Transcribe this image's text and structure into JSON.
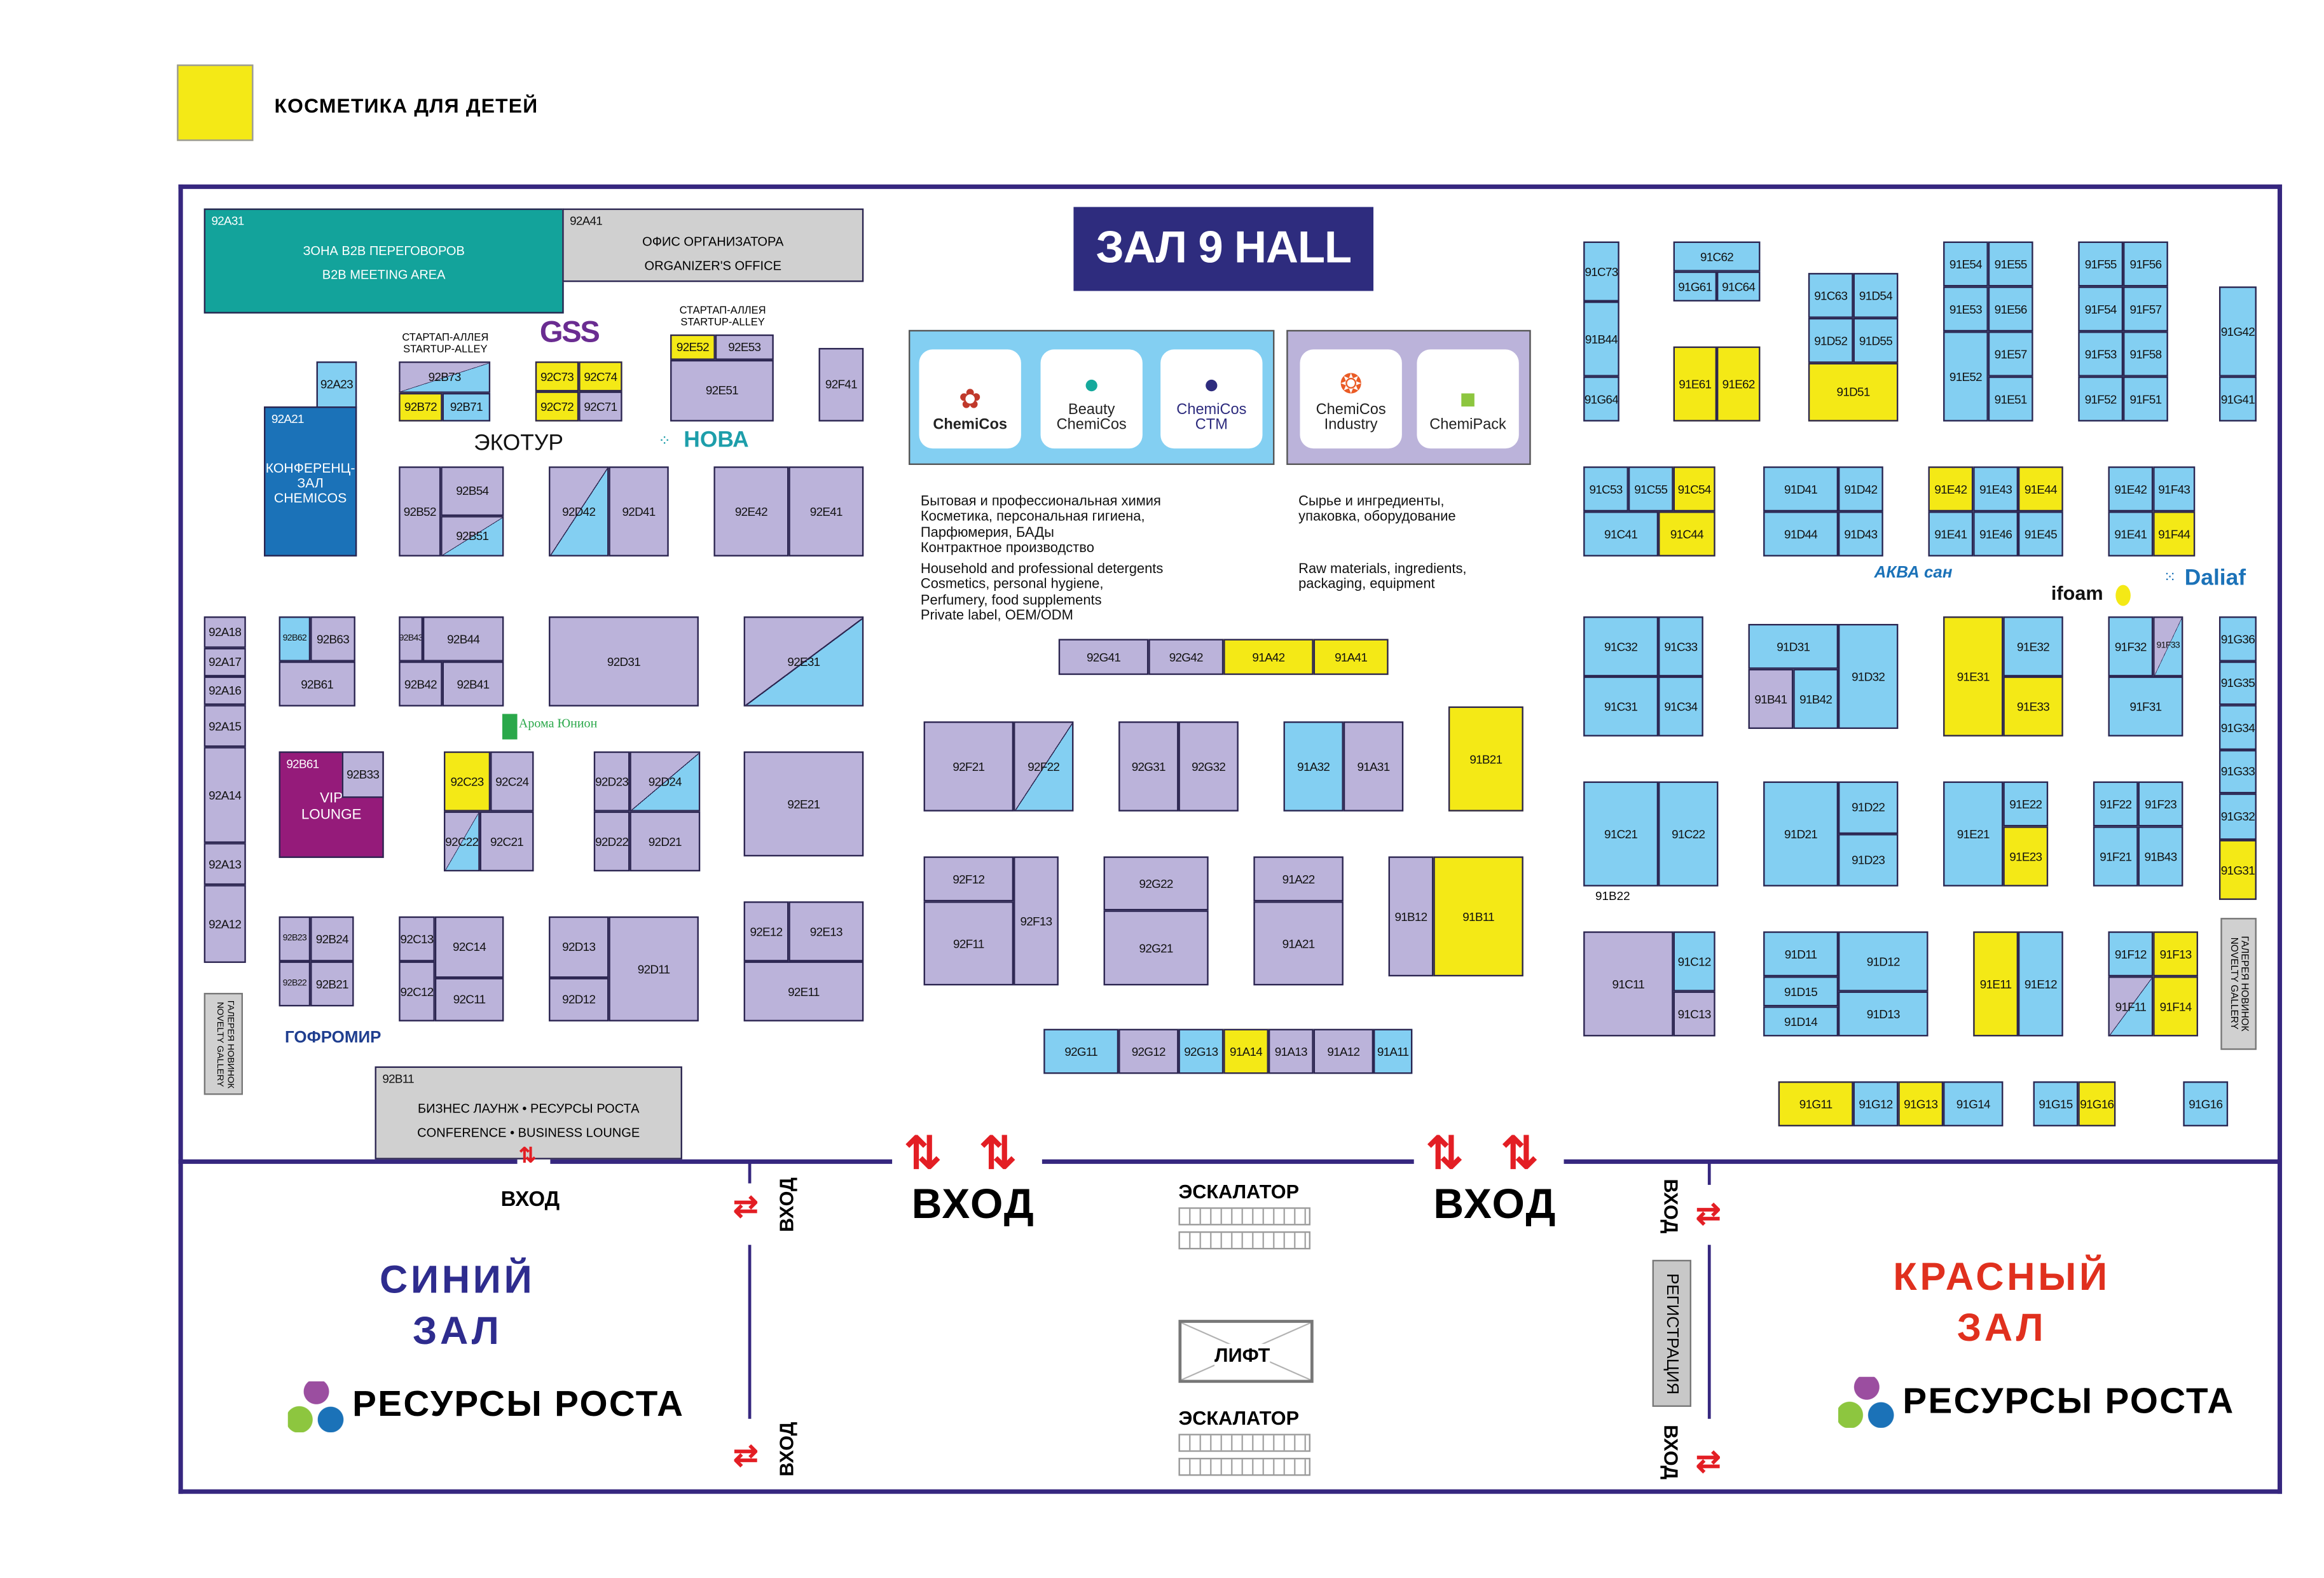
{
  "legend": {
    "label": "КОСМЕТИКА ДЛЯ ДЕТЕЙ",
    "color": "#f4e916"
  },
  "hall_title": "ЗАЛ 9 HALL",
  "colors": {
    "purple": "#bbb3da",
    "blue": "#83cff2",
    "yellow": "#f4e916",
    "teal": "#13a39b",
    "dark_blue": "#1b72b8",
    "magenta": "#951b7a",
    "gray": "#d0d0d0",
    "wall": "#36277f",
    "arrow": "#e31e24"
  },
  "brands_left": [
    {
      "name": "ChemiCos",
      "icon": "flower-icon"
    },
    {
      "name": "Beauty ChemiCos",
      "icon": "leaf-ball-icon"
    },
    {
      "name": "ChemiCos CTM",
      "icon": "pl-badge-icon"
    }
  ],
  "brands_right": [
    {
      "name": "ChemiCos Industry",
      "icon": "gear-ring-icon"
    },
    {
      "name": "ChemiPack",
      "icon": "cube-icon"
    }
  ],
  "desc_left_ru": "Бытовая и профессиональная химия\nКосметика, персональная гигиена,\nПарфюмерия, БАДы\nКонтрактное производство",
  "desc_left_en": "Household and professional detergents\nCosmetics, personal hygiene,\nPerfumery, food supplements\nPrivate label, OEM/ODM",
  "desc_right_ru": "Сырье и ингредиенты,\nупаковка, оборудование",
  "desc_right_en": "Raw materials, ingredients,\npackaging, equipment",
  "startup_alley": "СТАРТАП-АЛЛЕЯ\nSTARTUP-ALLEY",
  "novelty_gallery": "ГАЛЕРЕЯ НОВИНОК\nNOVELTY GALLERY",
  "exhibitor_logos": {
    "gss": "GSS",
    "ekotur": "ЭКОТУР",
    "nova": "НОВА",
    "aroma": "Арома Юнион",
    "gofromir": "ГОФРОМИР",
    "akvasan": "АКВА сан",
    "ifoam": "ifoam",
    "daliaf": "Daliaf"
  },
  "extra_label_91B22": "91B22",
  "bottom": {
    "entrance": "ВХОД",
    "escalator": "ЭСКАЛАТОР",
    "lift": "ЛИФТ",
    "registration": "РЕГИСТРАЦИЯ",
    "blue_hall_1": "СИНИЙ",
    "blue_hall_2": "ЗАЛ",
    "red_hall_1": "КРАСНЫЙ",
    "red_hall_2": "ЗАЛ",
    "resources": "РЕСУРСЫ РОСТА"
  },
  "booths": [
    {
      "id": "92A31",
      "c": "t",
      "note": [
        "ЗОНА B2B ПЕРЕГОВОРОВ",
        "B2B MEETING AREA"
      ]
    },
    {
      "id": "92A41",
      "c": "g",
      "note": [
        "ОФИС ОРГАНИЗАТОРА",
        "ORGANIZER'S OFFICE"
      ]
    },
    {
      "id": "92A23",
      "c": "b"
    },
    {
      "id": "92A21",
      "c": "d",
      "note": [
        "КОНФЕРЕНЦ-",
        "ЗАЛ",
        "CHEMICOS"
      ]
    },
    {
      "id": "92B73",
      "c": "pb"
    },
    {
      "id": "92B72",
      "c": "y"
    },
    {
      "id": "92B71",
      "c": "b"
    },
    {
      "id": "92C73",
      "c": "y"
    },
    {
      "id": "92C74",
      "c": "y"
    },
    {
      "id": "92C72",
      "c": "y"
    },
    {
      "id": "92C71",
      "c": "p"
    },
    {
      "id": "92E52",
      "c": "y"
    },
    {
      "id": "92E53",
      "c": "p"
    },
    {
      "id": "92E51",
      "c": "p"
    },
    {
      "id": "92F41",
      "c": "p"
    },
    {
      "id": "92B52",
      "c": "p"
    },
    {
      "id": "92B54",
      "c": "p"
    },
    {
      "id": "92B51",
      "c": "pb"
    },
    {
      "id": "92D42",
      "c": "pb"
    },
    {
      "id": "92D41",
      "c": "p"
    },
    {
      "id": "92E42",
      "c": "p"
    },
    {
      "id": "92E41",
      "c": "p"
    },
    {
      "id": "92A18",
      "c": "p"
    },
    {
      "id": "92A17",
      "c": "p"
    },
    {
      "id": "92A16",
      "c": "p"
    },
    {
      "id": "92A15",
      "c": "p"
    },
    {
      "id": "92A14",
      "c": "p"
    },
    {
      "id": "92A13",
      "c": "p"
    },
    {
      "id": "92A12",
      "c": "p"
    },
    {
      "id": "92B62",
      "c": "b"
    },
    {
      "id": "92B63",
      "c": "p"
    },
    {
      "id": "92B61",
      "c": "p"
    },
    {
      "id": "92B43",
      "c": "p"
    },
    {
      "id": "92B44",
      "c": "p"
    },
    {
      "id": "92B42",
      "c": "p"
    },
    {
      "id": "92B41",
      "c": "p"
    },
    {
      "id": "92D31",
      "c": "p"
    },
    {
      "id": "92E31",
      "c": "pb"
    },
    {
      "id": "92B61",
      "c": "m",
      "note": [
        "VIP",
        "LOUNGE"
      ]
    },
    {
      "id": "92B33",
      "c": "p"
    },
    {
      "id": "92C23",
      "c": "y"
    },
    {
      "id": "92C24",
      "c": "p"
    },
    {
      "id": "92C22",
      "c": "pb"
    },
    {
      "id": "92C21",
      "c": "p"
    },
    {
      "id": "92D23",
      "c": "p"
    },
    {
      "id": "92D24",
      "c": "pb"
    },
    {
      "id": "92D22",
      "c": "p"
    },
    {
      "id": "92D21",
      "c": "p"
    },
    {
      "id": "92E21",
      "c": "p"
    },
    {
      "id": "92B23",
      "c": "p"
    },
    {
      "id": "92B24",
      "c": "p"
    },
    {
      "id": "92B22",
      "c": "p"
    },
    {
      "id": "92B21",
      "c": "p"
    },
    {
      "id": "92C13",
      "c": "p"
    },
    {
      "id": "92C14",
      "c": "p"
    },
    {
      "id": "92C12",
      "c": "p"
    },
    {
      "id": "92C11",
      "c": "p"
    },
    {
      "id": "92D13",
      "c": "p"
    },
    {
      "id": "92D12",
      "c": "p"
    },
    {
      "id": "92D11",
      "c": "p"
    },
    {
      "id": "92E12",
      "c": "p"
    },
    {
      "id": "92E13",
      "c": "p"
    },
    {
      "id": "92E11",
      "c": "p"
    },
    {
      "id": "92B11",
      "c": "g",
      "note": [
        "БИЗНЕС ЛАУНЖ • РЕСУРСЫ РОСТА",
        "CONFERENCE • BUSINESS LOUNGE"
      ]
    },
    {
      "id": "92G41",
      "c": "p"
    },
    {
      "id": "92G42",
      "c": "p"
    },
    {
      "id": "91A42",
      "c": "y"
    },
    {
      "id": "91A41",
      "c": "y"
    },
    {
      "id": "92F21",
      "c": "p"
    },
    {
      "id": "92F22",
      "c": "pb"
    },
    {
      "id": "92G31",
      "c": "p"
    },
    {
      "id": "92G32",
      "c": "p"
    },
    {
      "id": "91A32",
      "c": "b"
    },
    {
      "id": "91A31",
      "c": "p"
    },
    {
      "id": "91B21",
      "c": "y"
    },
    {
      "id": "92F12",
      "c": "p"
    },
    {
      "id": "92F11",
      "c": "p"
    },
    {
      "id": "92F13",
      "c": "p"
    },
    {
      "id": "92G22",
      "c": "p"
    },
    {
      "id": "92G21",
      "c": "p"
    },
    {
      "id": "91A22",
      "c": "p"
    },
    {
      "id": "91A21",
      "c": "p"
    },
    {
      "id": "91B12",
      "c": "p"
    },
    {
      "id": "91B11",
      "c": "y"
    },
    {
      "id": "92G11",
      "c": "b"
    },
    {
      "id": "92G12",
      "c": "p"
    },
    {
      "id": "92G13",
      "c": "b"
    },
    {
      "id": "91A14",
      "c": "y"
    },
    {
      "id": "91A13",
      "c": "p"
    },
    {
      "id": "91A12",
      "c": "p"
    },
    {
      "id": "91A11",
      "c": "b"
    },
    {
      "id": "91C73",
      "c": "b"
    },
    {
      "id": "91B44",
      "c": "b"
    },
    {
      "id": "91G64",
      "c": "b"
    },
    {
      "id": "91C62",
      "c": "b"
    },
    {
      "id": "91G61",
      "c": "b"
    },
    {
      "id": "91C64",
      "c": "b"
    },
    {
      "id": "91E61",
      "c": "y"
    },
    {
      "id": "91E62",
      "c": "y"
    },
    {
      "id": "91C63",
      "c": "b"
    },
    {
      "id": "91D54",
      "c": "b"
    },
    {
      "id": "91D52",
      "c": "b"
    },
    {
      "id": "91D55",
      "c": "b"
    },
    {
      "id": "91D51",
      "c": "y"
    },
    {
      "id": "91E54",
      "c": "b"
    },
    {
      "id": "91E55",
      "c": "b"
    },
    {
      "id": "91E53",
      "c": "b"
    },
    {
      "id": "91E56",
      "c": "b"
    },
    {
      "id": "91E52",
      "c": "b"
    },
    {
      "id": "91E57",
      "c": "b"
    },
    {
      "id": "91E51",
      "c": "b"
    },
    {
      "id": "91F55",
      "c": "b"
    },
    {
      "id": "91F56",
      "c": "b"
    },
    {
      "id": "91F54",
      "c": "b"
    },
    {
      "id": "91F57",
      "c": "b"
    },
    {
      "id": "91F53",
      "c": "b"
    },
    {
      "id": "91F58",
      "c": "b"
    },
    {
      "id": "91F52",
      "c": "b"
    },
    {
      "id": "91F51",
      "c": "b"
    },
    {
      "id": "91G42",
      "c": "b"
    },
    {
      "id": "91G41",
      "c": "b"
    },
    {
      "id": "91C53",
      "c": "b"
    },
    {
      "id": "91C55",
      "c": "b"
    },
    {
      "id": "91C54",
      "c": "y"
    },
    {
      "id": "91C41",
      "c": "b"
    },
    {
      "id": "91C44",
      "c": "y"
    },
    {
      "id": "91D41",
      "c": "b"
    },
    {
      "id": "91D42",
      "c": "b"
    },
    {
      "id": "91D44",
      "c": "b"
    },
    {
      "id": "91D43",
      "c": "b"
    },
    {
      "id": "91E42",
      "c": "y"
    },
    {
      "id": "91E43",
      "c": "b"
    },
    {
      "id": "91E44",
      "c": "y"
    },
    {
      "id": "91E41",
      "c": "b"
    },
    {
      "id": "91E46",
      "c": "b"
    },
    {
      "id": "91E45",
      "c": "b"
    },
    {
      "id": "91E42",
      "c": "b"
    },
    {
      "id": "91F43",
      "c": "b"
    },
    {
      "id": "91E41",
      "c": "b"
    },
    {
      "id": "91F44",
      "c": "y"
    },
    {
      "id": "91C32",
      "c": "b"
    },
    {
      "id": "91C33",
      "c": "b"
    },
    {
      "id": "91C31",
      "c": "b"
    },
    {
      "id": "91C34",
      "c": "b"
    },
    {
      "id": "91D31",
      "c": "b"
    },
    {
      "id": "91B41",
      "c": "p"
    },
    {
      "id": "91B42",
      "c": "b"
    },
    {
      "id": "91D32",
      "c": "b"
    },
    {
      "id": "91E31",
      "c": "y"
    },
    {
      "id": "91E32",
      "c": "b"
    },
    {
      "id": "91E33",
      "c": "y"
    },
    {
      "id": "91F32",
      "c": "b"
    },
    {
      "id": "91F33",
      "c": "pb"
    },
    {
      "id": "91F31",
      "c": "b"
    },
    {
      "id": "91G36",
      "c": "b"
    },
    {
      "id": "91G35",
      "c": "b"
    },
    {
      "id": "91G34",
      "c": "b"
    },
    {
      "id": "91G33",
      "c": "b"
    },
    {
      "id": "91G32",
      "c": "b"
    },
    {
      "id": "91G31",
      "c": "y"
    },
    {
      "id": "91C21",
      "c": "b"
    },
    {
      "id": "91C22",
      "c": "b"
    },
    {
      "id": "91D21",
      "c": "b"
    },
    {
      "id": "91D22",
      "c": "b"
    },
    {
      "id": "91D23",
      "c": "b"
    },
    {
      "id": "91E21",
      "c": "b"
    },
    {
      "id": "91E22",
      "c": "b"
    },
    {
      "id": "91E23",
      "c": "y"
    },
    {
      "id": "91F22",
      "c": "b"
    },
    {
      "id": "91F23",
      "c": "b"
    },
    {
      "id": "91F21",
      "c": "b"
    },
    {
      "id": "91B43",
      "c": "b"
    },
    {
      "id": "91C11",
      "c": "p"
    },
    {
      "id": "91C12",
      "c": "b"
    },
    {
      "id": "91C13",
      "c": "p"
    },
    {
      "id": "91D11",
      "c": "b"
    },
    {
      "id": "91D15",
      "c": "b"
    },
    {
      "id": "91D14",
      "c": "b"
    },
    {
      "id": "91D12",
      "c": "b"
    },
    {
      "id": "91D13",
      "c": "b"
    },
    {
      "id": "91E11",
      "c": "y"
    },
    {
      "id": "91E12",
      "c": "b"
    },
    {
      "id": "91F12",
      "c": "b"
    },
    {
      "id": "91F13",
      "c": "y"
    },
    {
      "id": "91F11",
      "c": "pb"
    },
    {
      "id": "91F14",
      "c": "y"
    },
    {
      "id": "91G11",
      "c": "y"
    },
    {
      "id": "91G12",
      "c": "b"
    },
    {
      "id": "91G13",
      "c": "y"
    },
    {
      "id": "91G14",
      "c": "b"
    },
    {
      "id": "91G15",
      "c": "b"
    },
    {
      "id": "91G16",
      "c": "y"
    },
    {
      "id": "91G16",
      "c": "b"
    }
  ]
}
